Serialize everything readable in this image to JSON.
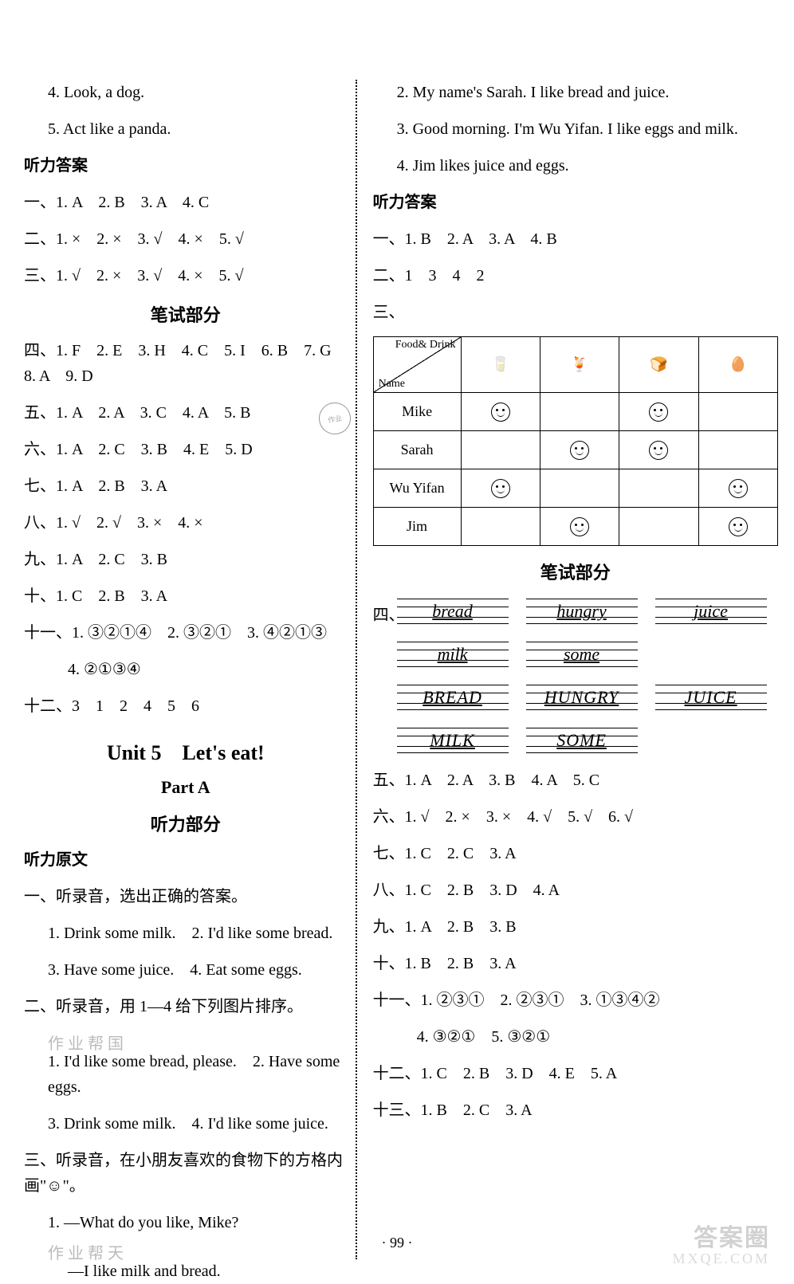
{
  "left": {
    "l1": "4. Look, a dog.",
    "l2": "5. Act like a panda.",
    "h1": "听力答案",
    "l3": "一、1. A　2. B　3. A　4. C",
    "l4": "二、1. ×　2. ×　3. √　4. ×　5. √",
    "l5": "三、1. √　2. ×　3. √　4. ×　5. √",
    "h2": "笔试部分",
    "l6": "四、1. F　2. E　3. H　4. C　5. I　6. B　7. G　8. A　9. D",
    "l7": "五、1. A　2. A　3. C　4. A　5. B",
    "l8": "六、1. A　2. C　3. B　4. E　5. D",
    "l9": "七、1. A　2. B　3. A",
    "l10": "八、1. √　2. √　3. ×　4. ×",
    "l11": "九、1. A　2. C　3. B",
    "l12": "十、1. C　2. B　3. A",
    "l13": "十一、1. ③②①④　2. ③②①　3. ④②①③",
    "l13b": "4. ②①③④",
    "l14": "十二、3　1　2　4　5　6",
    "unit": "Unit 5　Let's eat!",
    "part": "Part A",
    "h3": "听力部分",
    "h4": "听力原文",
    "q1": "一、听录音，选出正确的答案。",
    "q1a": "1. Drink some milk.　2. I'd like some bread.",
    "q1b": "3. Have some juice.　4. Eat some eggs.",
    "q2": "二、听录音，用 1—4 给下列图片排序。",
    "q2a": "1. I'd like some bread, please.　2. Have some eggs.",
    "q2b": "3. Drink some milk.　4. I'd like some juice.",
    "q3": "三、听录音，在小朋友喜欢的食物下的方格内画\"☺\"。",
    "q3a": "1. —What do you like, Mike?",
    "q3b": "—I like milk and bread.",
    "faded1": "作 业 帮 国",
    "faded2": "作 业 帮 天"
  },
  "right": {
    "r1": "2. My name's Sarah. I like bread and juice.",
    "r2": "3. Good morning. I'm Wu Yifan. I like eggs and milk.",
    "r3": "4. Jim likes juice and eggs.",
    "h1": "听力答案",
    "r4": "一、1. B　2. A　3. A　4. B",
    "r5": "二、1　3　4　2",
    "r6": "三、",
    "table": {
      "diag_top": "Food&\nDrink",
      "diag_bottom": "Name",
      "icons": [
        "🥛",
        "🍹",
        "🍞",
        "🥚"
      ],
      "rows": [
        {
          "name": "Mike",
          "cells": [
            "smile",
            "",
            "smile",
            ""
          ]
        },
        {
          "name": "Sarah",
          "cells": [
            "",
            "smile",
            "smile",
            ""
          ]
        },
        {
          "name": "Wu Yifan",
          "cells": [
            "smile",
            "",
            "",
            "smile"
          ]
        },
        {
          "name": "Jim",
          "cells": [
            "",
            "smile",
            "",
            "smile"
          ]
        }
      ]
    },
    "h2": "笔试部分",
    "hw_label": "四、",
    "hw1": [
      "bread",
      "hungry",
      "juice"
    ],
    "hw2": [
      "milk",
      "some"
    ],
    "hw3": [
      "BREAD",
      "HUNGRY",
      "JUICE"
    ],
    "hw4": [
      "MILK",
      "SOME"
    ],
    "r7": "五、1. A　2. A　3. B　4. A　5. C",
    "r8": "六、1. √　2. ×　3. ×　4. √　5. √　6. √",
    "r9": "七、1. C　2. C　3. A",
    "r10": "八、1. C　2. B　3. D　4. A",
    "r11": "九、1. A　2. B　3. B",
    "r12": "十、1. B　2. B　3. A",
    "r13": "十一、1. ②③①　2. ②③①　3. ①③④②",
    "r13b": "4. ③②①　5. ③②①",
    "r14": "十二、1. C　2. B　3. D　4. E　5. A",
    "r15": "十三、1. B　2. C　3. A"
  },
  "page": "· 99 ·",
  "wm1": "答案圈",
  "wm2": "MXQE.COM"
}
